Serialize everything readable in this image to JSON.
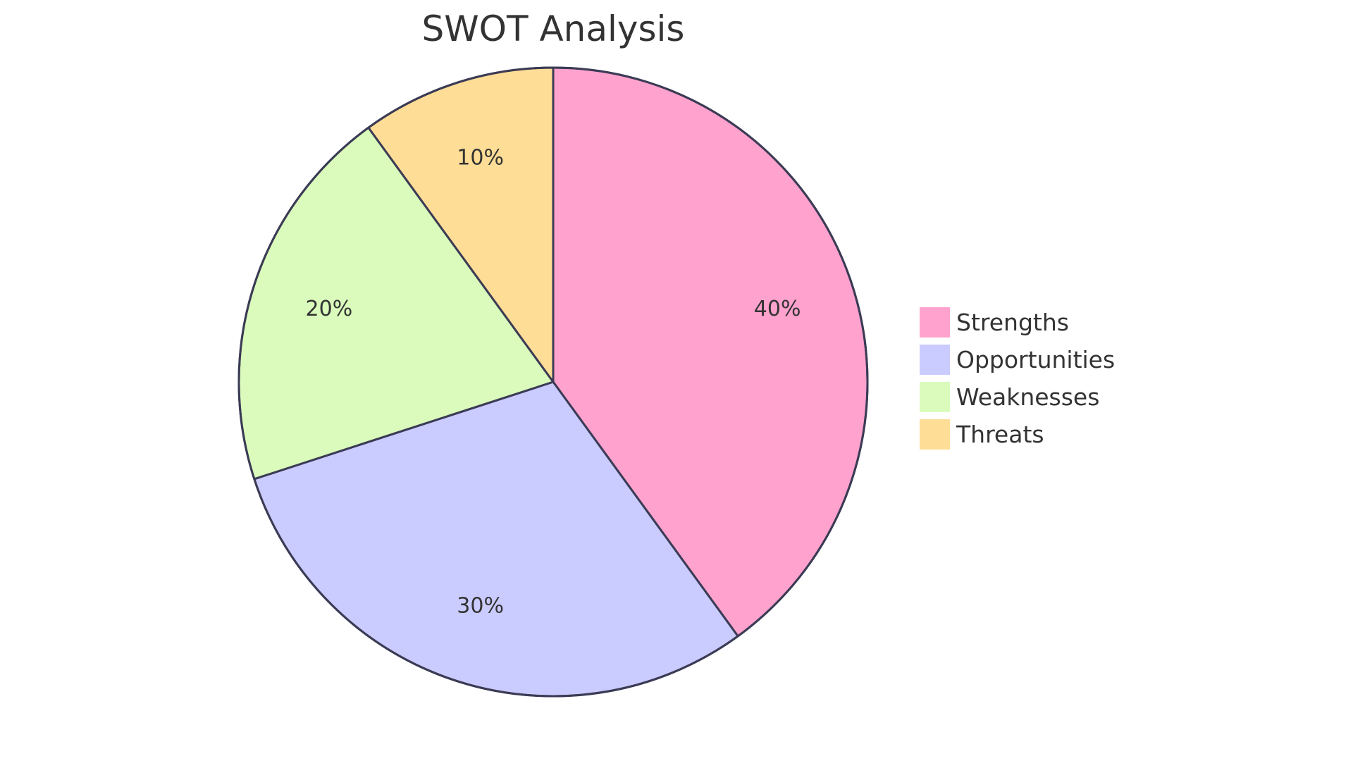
{
  "chart_data": {
    "type": "pie",
    "title": "SWOT Analysis",
    "slices": [
      {
        "label": "Strengths",
        "value": 40,
        "display": "40%",
        "color": "#FFA2CE"
      },
      {
        "label": "Opportunities",
        "value": 30,
        "display": "30%",
        "color": "#CACBFF"
      },
      {
        "label": "Weaknesses",
        "value": 20,
        "display": "20%",
        "color": "#DAFBBB"
      },
      {
        "label": "Threats",
        "value": 10,
        "display": "10%",
        "color": "#FEDD96"
      }
    ],
    "legend_position": "right",
    "stroke_color": "#3B3B55"
  }
}
